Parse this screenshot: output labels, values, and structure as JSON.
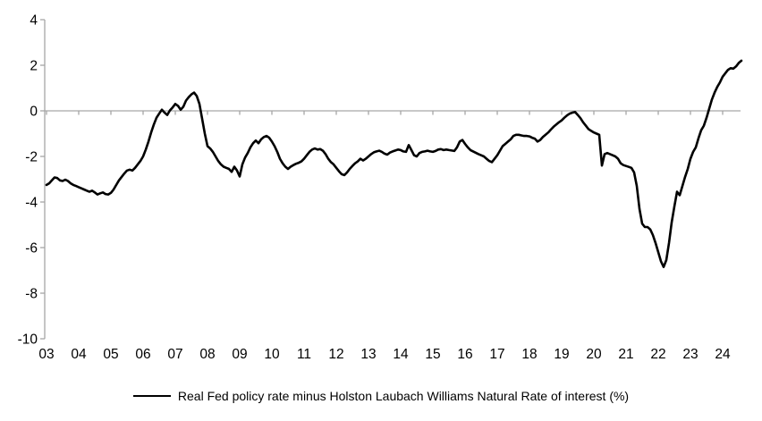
{
  "chart_data": {
    "type": "line",
    "title": "",
    "legend": "Real Fed policy rate minus Holston Laubach Williams Natural Rate of interest (%)",
    "x_tick_labels": [
      "03",
      "04",
      "05",
      "06",
      "07",
      "08",
      "09",
      "10",
      "11",
      "12",
      "13",
      "14",
      "15",
      "16",
      "17",
      "18",
      "19",
      "20",
      "21",
      "22",
      "23",
      "24"
    ],
    "y_ticks": [
      4,
      2,
      0,
      -2,
      -4,
      -6,
      -8,
      -10
    ],
    "ylim": [
      -10,
      4
    ],
    "x_start_year": 2003,
    "frequency": "monthly",
    "grid": "zero-line-only",
    "legend_position": "bottom-center",
    "line_color": "#000000",
    "axis_color": "#a6a6a6",
    "series": [
      {
        "name": "Real Fed policy rate minus Holston Laubach Williams Natural Rate of interest (%)",
        "values": [
          -3.25,
          -3.18,
          -3.05,
          -2.92,
          -2.95,
          -3.05,
          -3.08,
          -3.02,
          -3.08,
          -3.18,
          -3.25,
          -3.3,
          -3.35,
          -3.4,
          -3.45,
          -3.5,
          -3.55,
          -3.5,
          -3.58,
          -3.67,
          -3.62,
          -3.58,
          -3.65,
          -3.67,
          -3.6,
          -3.45,
          -3.25,
          -3.05,
          -2.9,
          -2.75,
          -2.62,
          -2.58,
          -2.62,
          -2.5,
          -2.35,
          -2.2,
          -2.0,
          -1.7,
          -1.35,
          -0.95,
          -0.6,
          -0.3,
          -0.12,
          0.05,
          -0.08,
          -0.18,
          0.02,
          0.15,
          0.3,
          0.22,
          0.05,
          0.18,
          0.45,
          0.6,
          0.72,
          0.8,
          0.65,
          0.3,
          -0.35,
          -1.0,
          -1.55,
          -1.65,
          -1.8,
          -2.0,
          -2.2,
          -2.35,
          -2.45,
          -2.5,
          -2.55,
          -2.68,
          -2.45,
          -2.62,
          -2.88,
          -2.35,
          -2.05,
          -1.85,
          -1.6,
          -1.42,
          -1.3,
          -1.42,
          -1.25,
          -1.15,
          -1.1,
          -1.18,
          -1.35,
          -1.55,
          -1.8,
          -2.1,
          -2.3,
          -2.45,
          -2.55,
          -2.45,
          -2.38,
          -2.32,
          -2.28,
          -2.22,
          -2.1,
          -1.95,
          -1.8,
          -1.7,
          -1.65,
          -1.7,
          -1.68,
          -1.75,
          -1.9,
          -2.1,
          -2.25,
          -2.35,
          -2.5,
          -2.65,
          -2.78,
          -2.82,
          -2.7,
          -2.55,
          -2.42,
          -2.3,
          -2.22,
          -2.1,
          -2.18,
          -2.1,
          -2.0,
          -1.9,
          -1.82,
          -1.78,
          -1.75,
          -1.8,
          -1.88,
          -1.92,
          -1.83,
          -1.78,
          -1.74,
          -1.7,
          -1.72,
          -1.78,
          -1.8,
          -1.5,
          -1.72,
          -1.95,
          -2.0,
          -1.85,
          -1.8,
          -1.78,
          -1.75,
          -1.78,
          -1.8,
          -1.76,
          -1.7,
          -1.68,
          -1.72,
          -1.7,
          -1.72,
          -1.74,
          -1.76,
          -1.6,
          -1.35,
          -1.28,
          -1.45,
          -1.6,
          -1.72,
          -1.78,
          -1.84,
          -1.9,
          -1.95,
          -2.0,
          -2.1,
          -2.2,
          -2.25,
          -2.1,
          -1.95,
          -1.75,
          -1.55,
          -1.45,
          -1.35,
          -1.25,
          -1.1,
          -1.05,
          -1.05,
          -1.08,
          -1.1,
          -1.1,
          -1.12,
          -1.18,
          -1.22,
          -1.35,
          -1.28,
          -1.15,
          -1.05,
          -0.95,
          -0.82,
          -0.7,
          -0.6,
          -0.5,
          -0.42,
          -0.3,
          -0.2,
          -0.12,
          -0.08,
          -0.05,
          -0.18,
          -0.32,
          -0.5,
          -0.65,
          -0.8,
          -0.88,
          -0.95,
          -1.0,
          -1.05,
          -2.4,
          -1.9,
          -1.85,
          -1.9,
          -1.95,
          -2.0,
          -2.1,
          -2.3,
          -2.38,
          -2.42,
          -2.46,
          -2.5,
          -2.7,
          -3.3,
          -4.3,
          -4.95,
          -5.1,
          -5.1,
          -5.2,
          -5.45,
          -5.8,
          -6.2,
          -6.6,
          -6.85,
          -6.55,
          -5.8,
          -4.9,
          -4.2,
          -3.55,
          -3.7,
          -3.3,
          -2.9,
          -2.55,
          -2.1,
          -1.8,
          -1.6,
          -1.2,
          -0.85,
          -0.65,
          -0.3,
          0.1,
          0.5,
          0.8,
          1.05,
          1.25,
          1.5,
          1.65,
          1.8,
          1.87,
          1.85,
          1.95,
          2.1,
          2.2
        ]
      }
    ]
  }
}
